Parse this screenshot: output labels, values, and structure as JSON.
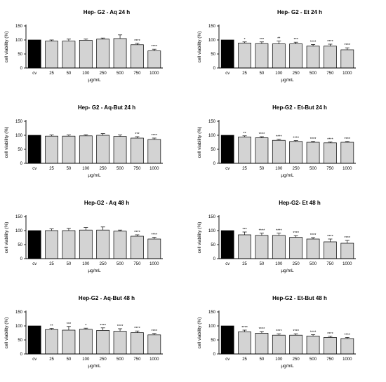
{
  "chart_data": [
    {
      "type": "bar",
      "title": "Hep- G2 - Aq 24 h",
      "xlabel": "µg/mL",
      "ylabel": "cell viability (%)",
      "ylim": [
        0,
        150
      ],
      "yticks": [
        0,
        50,
        100,
        150
      ],
      "categories": [
        "cv",
        "25",
        "50",
        "100",
        "250",
        "500",
        "750",
        "1000"
      ],
      "values": [
        100,
        96,
        96,
        99,
        103,
        105,
        83,
        61
      ],
      "errors": [
        0,
        4,
        7,
        4,
        4,
        13,
        5,
        6
      ],
      "significance": [
        "",
        "",
        "",
        "",
        "",
        "",
        "****",
        "****"
      ]
    },
    {
      "type": "bar",
      "title": "Hep- G2 - Et 24 h",
      "xlabel": "µg/mL",
      "ylabel": "cell viability (%)",
      "ylim": [
        0,
        150
      ],
      "yticks": [
        0,
        50,
        100,
        150
      ],
      "categories": [
        "cv",
        "25",
        "50",
        "100",
        "250",
        "500",
        "750",
        "1000"
      ],
      "values": [
        100,
        89,
        87,
        86,
        86,
        78,
        78,
        65
      ],
      "errors": [
        0,
        4,
        6,
        10,
        6,
        6,
        7,
        7
      ],
      "significance": [
        "",
        "*",
        "***",
        "**",
        "***",
        "****",
        "****",
        "****"
      ]
    },
    {
      "type": "bar",
      "title": "Hep- G2 - Aq-But 24 h",
      "xlabel": "µg/mL",
      "ylabel": "cell viability (%)",
      "ylim": [
        0,
        150
      ],
      "yticks": [
        0,
        50,
        100,
        150
      ],
      "categories": [
        "cv",
        "25",
        "50",
        "100",
        "250",
        "500",
        "750",
        "1000"
      ],
      "values": [
        100,
        97,
        97,
        98,
        100,
        96,
        90,
        85
      ],
      "errors": [
        0,
        4,
        4,
        4,
        6,
        5,
        5,
        5
      ],
      "significance": [
        "",
        "",
        "",
        "",
        "",
        "",
        "***",
        "****"
      ]
    },
    {
      "type": "bar",
      "title": "Hep-G2 - Et-But 24 h",
      "xlabel": "µg/mL",
      "ylabel": "cell viability (%)",
      "ylim": [
        0,
        150
      ],
      "yticks": [
        0,
        50,
        100,
        150
      ],
      "categories": [
        "cv",
        "25",
        "50",
        "100",
        "250",
        "500",
        "750",
        "1000"
      ],
      "values": [
        100,
        94,
        91,
        82,
        78,
        75,
        73,
        75
      ],
      "errors": [
        0,
        4,
        4,
        4,
        3,
        3,
        3,
        3
      ],
      "significance": [
        "",
        "**",
        "****",
        "****",
        "****",
        "****",
        "****",
        "****"
      ]
    },
    {
      "type": "bar",
      "title": "Hep-G2 - Aq 48 h",
      "xlabel": "µg/mL",
      "ylabel": "cell viability (%)",
      "ylim": [
        0,
        150
      ],
      "yticks": [
        0,
        50,
        100,
        150
      ],
      "categories": [
        "cv",
        "25",
        "50",
        "100",
        "250",
        "500",
        "750",
        "1000"
      ],
      "values": [
        100,
        100,
        100,
        102,
        102,
        98,
        80,
        70
      ],
      "errors": [
        0,
        6,
        8,
        9,
        11,
        4,
        5,
        6
      ],
      "significance": [
        "",
        "",
        "",
        "",
        "",
        "",
        "****",
        "****"
      ]
    },
    {
      "type": "bar",
      "title": "Hep-G2- Et 48 h",
      "xlabel": "µg/mL",
      "ylabel": "cell viability (%)",
      "ylim": [
        0,
        150
      ],
      "yticks": [
        0,
        50,
        100,
        150
      ],
      "categories": [
        "cv",
        "25",
        "50",
        "100",
        "250",
        "500",
        "750",
        "1000"
      ],
      "values": [
        100,
        85,
        83,
        83,
        76,
        70,
        60,
        55
      ],
      "errors": [
        0,
        10,
        8,
        8,
        6,
        5,
        10,
        10
      ],
      "significance": [
        "",
        "***",
        "****",
        "****",
        "****",
        "****",
        "****",
        "****"
      ]
    },
    {
      "type": "bar",
      "title": "Hep-G2 - Aq-But 48 h",
      "xlabel": "µg/mL",
      "ylabel": "cell viability (%)",
      "ylim": [
        0,
        150
      ],
      "yticks": [
        0,
        50,
        100,
        150
      ],
      "categories": [
        "cv",
        "25",
        "50",
        "100",
        "250",
        "500",
        "750",
        "1000"
      ],
      "values": [
        100,
        87,
        85,
        88,
        84,
        81,
        76,
        68
      ],
      "errors": [
        0,
        4,
        13,
        4,
        9,
        9,
        6,
        5
      ],
      "significance": [
        "",
        "**",
        "***",
        "*",
        "****",
        "****",
        "****",
        "****"
      ]
    },
    {
      "type": "bar",
      "title": "Hep-G2 - Et-But 48 h",
      "xlabel": "µg/mL",
      "ylabel": "cell viability (%)",
      "ylim": [
        0,
        150
      ],
      "yticks": [
        0,
        50,
        100,
        150
      ],
      "categories": [
        "cv",
        "25",
        "50",
        "100",
        "250",
        "500",
        "750",
        "1000"
      ],
      "values": [
        100,
        79,
        74,
        67,
        67,
        64,
        59,
        55
      ],
      "errors": [
        0,
        6,
        6,
        5,
        5,
        5,
        4,
        4
      ],
      "significance": [
        "",
        "****",
        "****",
        "****",
        "****",
        "****",
        "****",
        "****"
      ]
    }
  ],
  "colors": {
    "control_bar": "#000000",
    "treatment_bar": "#d3d3d3",
    "bar_outline": "#000000"
  }
}
